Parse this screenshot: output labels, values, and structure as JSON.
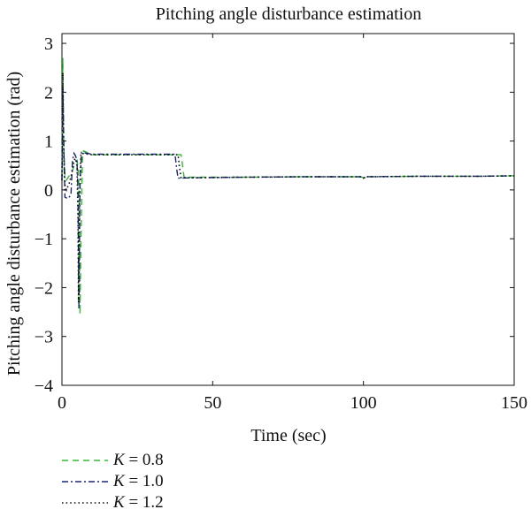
{
  "chart_data": {
    "type": "line",
    "title": "Pitching angle disturbance estimation",
    "xlabel": "Time (sec)",
    "ylabel": "Pitching angle disturbance estimation (rad)",
    "xlim": [
      0,
      150
    ],
    "ylim": [
      -4,
      3.2
    ],
    "xticks": [
      0,
      50,
      100,
      150
    ],
    "yticks": [
      -4,
      -3,
      -2,
      -1,
      0,
      1,
      2,
      3
    ],
    "xtick_labels": [
      "0",
      "50",
      "100",
      "150"
    ],
    "ytick_labels": [
      "−4",
      "−3",
      "−2",
      "−1",
      "0",
      "1",
      "2",
      "3"
    ],
    "grid": false,
    "legend_position": "below-left",
    "series": [
      {
        "name_symbol": "K",
        "name_value": "= 0.8",
        "color": "#33bb33",
        "dash": "dashed",
        "x": [
          0,
          0.3,
          0.6,
          1.0,
          1.5,
          2.5,
          3.5,
          4.0,
          5.0,
          5.5,
          5.8,
          6.0,
          6.3,
          6.8,
          7.2,
          10,
          20,
          30,
          39.5,
          40.0,
          40.5,
          45,
          60,
          80,
          99,
          100,
          101,
          120,
          140,
          150
        ],
        "y": [
          0.2,
          2.7,
          0.9,
          0.3,
          0.2,
          0.3,
          0.4,
          0.5,
          0.6,
          0.4,
          -0.5,
          -2.55,
          -1.0,
          0.7,
          0.8,
          0.72,
          0.72,
          0.72,
          0.72,
          0.5,
          0.26,
          0.26,
          0.26,
          0.27,
          0.27,
          0.25,
          0.27,
          0.28,
          0.28,
          0.29
        ]
      },
      {
        "name_symbol": "K",
        "name_value": "= 1.0",
        "color": "#1a237e",
        "dash": "dashdot",
        "x": [
          0,
          0.3,
          0.7,
          1.0,
          2.0,
          3.0,
          3.5,
          4.0,
          4.5,
          5.0,
          5.3,
          5.6,
          6.0,
          6.5,
          10,
          20,
          30,
          37.5,
          38.0,
          38.5,
          45,
          60,
          80,
          99,
          100,
          101,
          120,
          140,
          150
        ],
        "y": [
          0.2,
          2.1,
          0.6,
          -0.15,
          -0.18,
          -0.1,
          0.6,
          0.75,
          0.7,
          0.6,
          0.0,
          -2.45,
          0.1,
          0.77,
          0.73,
          0.73,
          0.73,
          0.73,
          0.45,
          0.24,
          0.25,
          0.26,
          0.27,
          0.27,
          0.24,
          0.27,
          0.28,
          0.28,
          0.29
        ]
      },
      {
        "name_symbol": "K",
        "name_value": "= 1.2",
        "color": "#111111",
        "dash": "dotted",
        "x": [
          0,
          0.3,
          0.6,
          1.0,
          1.5,
          2.5,
          3.5,
          4.0,
          4.5,
          5.0,
          5.3,
          5.5,
          5.8,
          6.3,
          10,
          20,
          30,
          38.5,
          39.0,
          39.5,
          45,
          60,
          80,
          99,
          100,
          101,
          120,
          140,
          150
        ],
        "y": [
          0.2,
          2.4,
          0.7,
          0.1,
          0.0,
          0.15,
          0.4,
          0.6,
          0.65,
          0.5,
          -0.5,
          -2.3,
          -0.3,
          0.75,
          0.72,
          0.72,
          0.72,
          0.72,
          0.45,
          0.25,
          0.25,
          0.26,
          0.27,
          0.27,
          0.24,
          0.27,
          0.28,
          0.28,
          0.29
        ]
      }
    ]
  }
}
